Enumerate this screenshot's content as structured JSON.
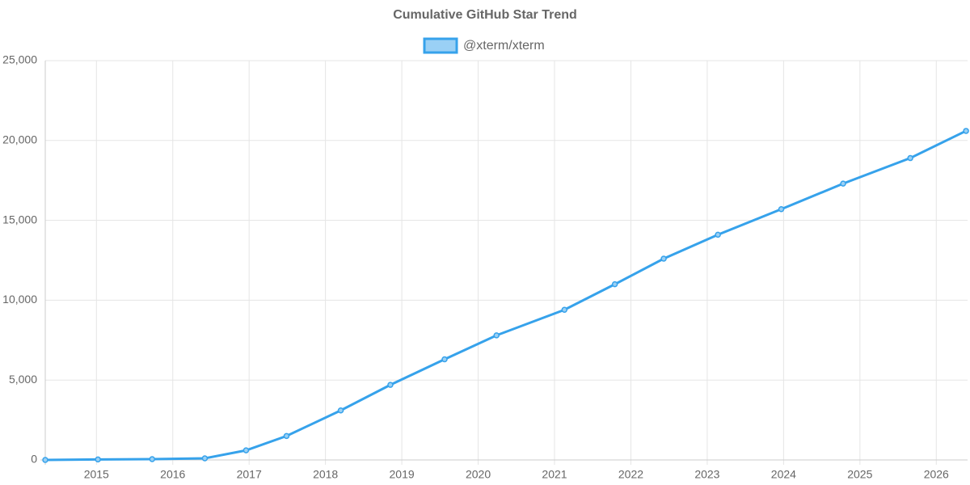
{
  "chart_data": {
    "type": "line",
    "title": "Cumulative GitHub Star Trend",
    "x": [
      2014.33,
      2015.02,
      2015.73,
      2016.42,
      2016.96,
      2017.49,
      2018.2,
      2018.85,
      2019.56,
      2020.24,
      2021.13,
      2021.79,
      2022.43,
      2023.14,
      2023.97,
      2024.78,
      2025.66,
      2026.39
    ],
    "series": [
      {
        "name": "@xterm/xterm",
        "color": "#36a2eb",
        "values": [
          0,
          30,
          50,
          100,
          600,
          1500,
          3100,
          4700,
          6300,
          7800,
          9400,
          11000,
          12600,
          14100,
          15700,
          17300,
          18900,
          20600
        ]
      }
    ],
    "xlim": [
      2014.33,
      2026.41
    ],
    "xticks": [
      2015,
      2016,
      2017,
      2018,
      2019,
      2020,
      2021,
      2022,
      2023,
      2024,
      2025,
      2026
    ],
    "ylim": [
      0,
      25000
    ],
    "yticks": [
      0,
      {
        "value": 5000,
        "label": "5,000"
      },
      {
        "value": 10000,
        "label": "10,000"
      },
      {
        "value": 15000,
        "label": "15,000"
      },
      {
        "value": 20000,
        "label": "20,000"
      },
      {
        "value": 25000,
        "label": "25,000"
      }
    ],
    "grid": true,
    "legend": "top"
  }
}
